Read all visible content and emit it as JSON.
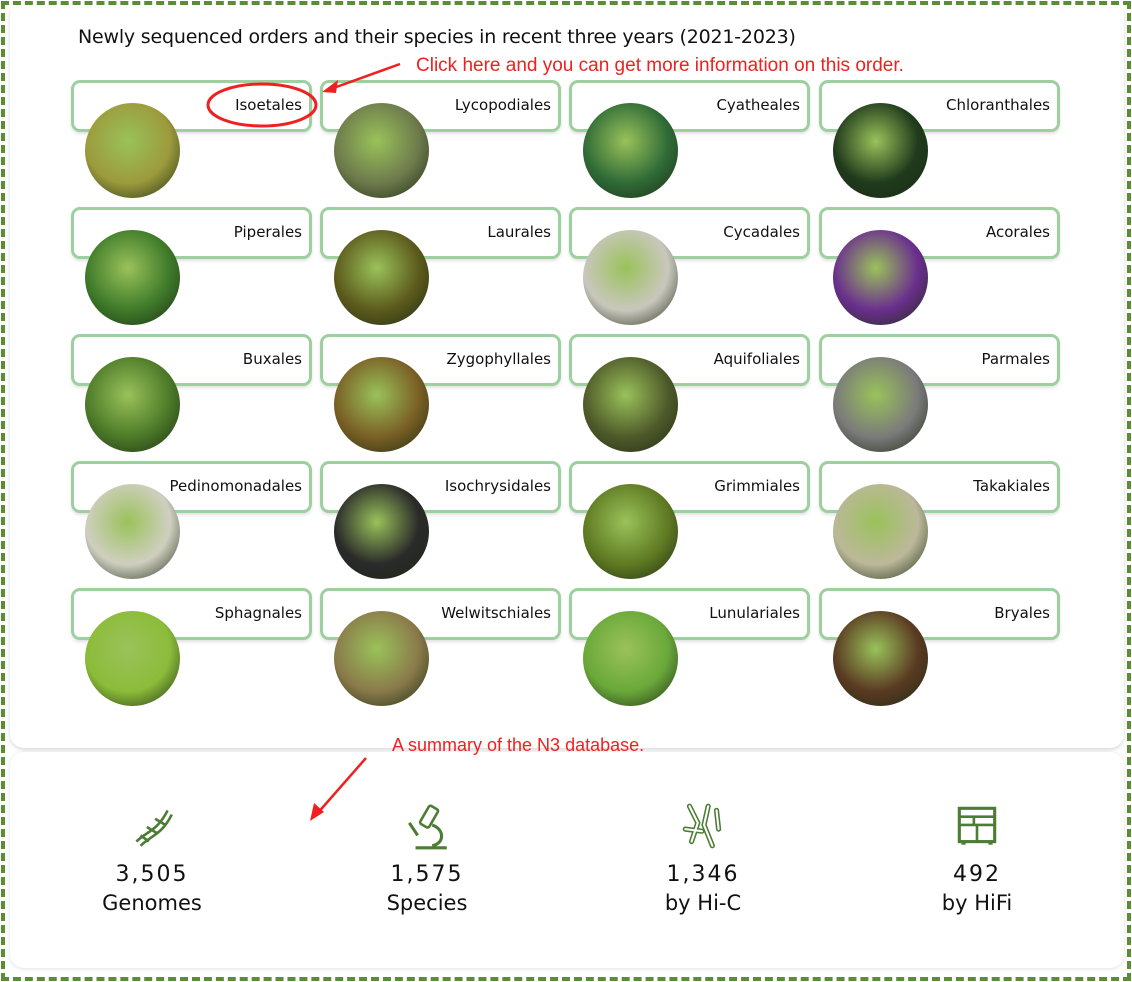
{
  "title": "Newly sequenced orders and their species in recent three years (2021-2023)",
  "annotations": {
    "click_hint": "Click here and you can get more information on this order.",
    "summary_hint": "A summary of the N3 database."
  },
  "orders": [
    {
      "name": "Isoetales",
      "color": "#9c9a3c"
    },
    {
      "name": "Lycopodiales",
      "color": "#6d7a4c"
    },
    {
      "name": "Cyatheales",
      "color": "#2f6b37"
    },
    {
      "name": "Chloranthales",
      "color": "#1f3a1c"
    },
    {
      "name": "Piperales",
      "color": "#3e7a2a"
    },
    {
      "name": "Laurales",
      "color": "#5c5a1c"
    },
    {
      "name": "Cycadales",
      "color": "#c9c7bd"
    },
    {
      "name": "Acorales",
      "color": "#6a2f8e"
    },
    {
      "name": "Buxales",
      "color": "#4c7a28"
    },
    {
      "name": "Zygophyllales",
      "color": "#7a5f25"
    },
    {
      "name": "Aquifoliales",
      "color": "#4f5a2a"
    },
    {
      "name": "Parmales",
      "color": "#7a7a7a"
    },
    {
      "name": "Pedinomonadales",
      "color": "#cfcfc0"
    },
    {
      "name": "Isochrysidales",
      "color": "#2a2a2a"
    },
    {
      "name": "Grimmiales",
      "color": "#5f7a22"
    },
    {
      "name": "Takakiales",
      "color": "#bcb89a"
    },
    {
      "name": "Sphagnales",
      "color": "#8cbc3a"
    },
    {
      "name": "Welwitschiales",
      "color": "#8a7a4a"
    },
    {
      "name": "Lunulariales",
      "color": "#6aa83a"
    },
    {
      "name": "Bryales",
      "color": "#5a3a22"
    }
  ],
  "stats": [
    {
      "value": "3,505",
      "label": "Genomes",
      "icon": "dna-icon"
    },
    {
      "value": "1,575",
      "label": "Species",
      "icon": "microscope-icon"
    },
    {
      "value": "1,346",
      "label": "by Hi-C",
      "icon": "chromosome-icon"
    },
    {
      "value": "492",
      "label": "by HiFi",
      "icon": "sequencer-icon"
    }
  ],
  "colors": {
    "accent": "#5b8e33",
    "card_border": "#9dd09e",
    "annotation": "#f02020"
  }
}
